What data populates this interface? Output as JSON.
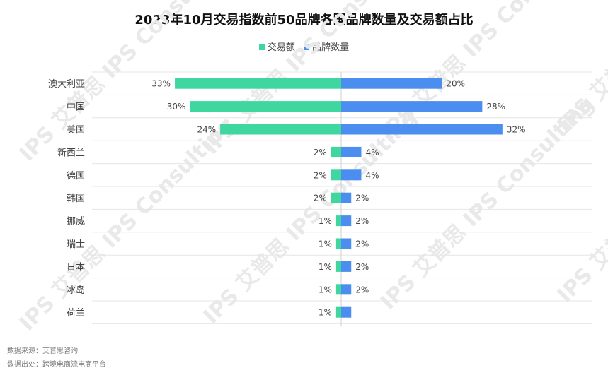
{
  "title": "2023年10月交易指数前50品牌各国品牌数量及交易额占比",
  "legend": {
    "series_a": "交易额",
    "series_b": "品牌数量"
  },
  "footnote": {
    "source": "数据来源：艾普思咨询",
    "note": "数据出处：跨境电商流电商平台"
  },
  "watermark": "IPS 艾普思 IPS Consulting",
  "colors": {
    "series_a": "#3fd6a0",
    "series_b": "#4c8ef0"
  },
  "chart_data": {
    "type": "bar",
    "orientation": "horizontal-diverging",
    "title": "2023年10月交易指数前50品牌各国品牌数量及交易额占比",
    "categories": [
      "澳大利亚",
      "中国",
      "美国",
      "新西兰",
      "德国",
      "韩国",
      "挪威",
      "瑞士",
      "日本",
      "冰岛",
      "荷兰"
    ],
    "series": [
      {
        "name": "交易额",
        "values": [
          33,
          30,
          24,
          2,
          2,
          2,
          1,
          1,
          1,
          1,
          1
        ],
        "labels": [
          "33%",
          "30%",
          "24%",
          "2%",
          "2%",
          "2%",
          "1%",
          "1%",
          "1%",
          "1%",
          "1%"
        ]
      },
      {
        "name": "品牌数量",
        "values": [
          20,
          28,
          32,
          4,
          4,
          2,
          2,
          2,
          2,
          2,
          2
        ],
        "labels": [
          "20%",
          "28%",
          "32%",
          "4%",
          "4%",
          "2%",
          "2%",
          "2%",
          "2%",
          "2%",
          ""
        ]
      }
    ],
    "unit": "%",
    "legend_position": "top-center",
    "grid": true
  }
}
